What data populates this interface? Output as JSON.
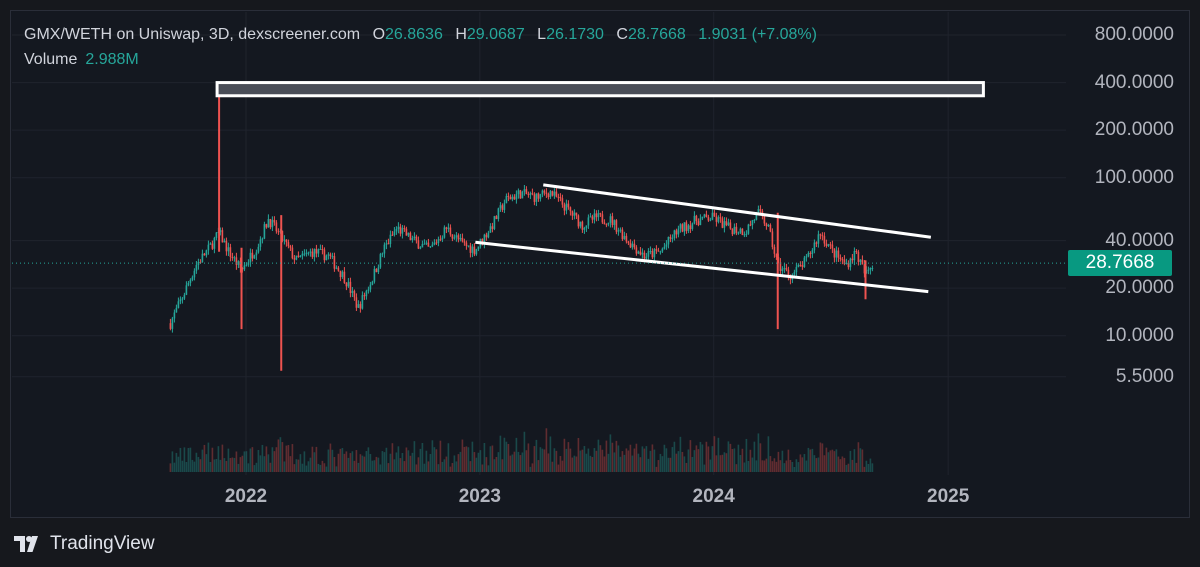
{
  "header": {
    "title": "GMX/WETH on Uniswap, 3D, dexscreener.com",
    "o_label": "O",
    "o_value": "26.8636",
    "h_label": "H",
    "h_value": "29.0687",
    "l_label": "L",
    "l_value": "26.1730",
    "c_label": "C",
    "c_value": "28.7668",
    "change": "1.9031 (+7.08%)"
  },
  "volume": {
    "label": "Volume",
    "value": "2.988M"
  },
  "price_tag": "28.7668",
  "brand": "TradingView",
  "colors": {
    "up": "#26a69a",
    "down": "#ef5350",
    "background": "#141820",
    "grid": "#1f232d",
    "trendline": "#ffffff",
    "tag": "#089981"
  },
  "chart_data": {
    "type": "candlestick",
    "scale": "log",
    "y_ticks": [
      "800.0000",
      "400.0000",
      "200.0000",
      "100.0000",
      "40.0000",
      "20.0000",
      "10.0000",
      "5.5000"
    ],
    "x_ticks": [
      "2022",
      "2023",
      "2024",
      "2025"
    ],
    "ylim": [
      5.5,
      800
    ],
    "last_price": 28.7668,
    "price_path": [
      [
        "2021-09-05",
        12
      ],
      [
        "2021-09-25",
        18
      ],
      [
        "2021-10-15",
        28
      ],
      [
        "2021-11-05",
        36
      ],
      [
        "2021-11-20",
        45
      ],
      [
        "2021-12-05",
        34
      ],
      [
        "2021-12-25",
        26
      ],
      [
        "2022-01-20",
        38
      ],
      [
        "2022-02-05",
        55
      ],
      [
        "2022-02-25",
        42
      ],
      [
        "2022-03-20",
        30
      ],
      [
        "2022-04-15",
        34
      ],
      [
        "2022-05-10",
        32
      ],
      [
        "2022-06-05",
        23
      ],
      [
        "2022-06-25",
        15
      ],
      [
        "2022-07-15",
        22
      ],
      [
        "2022-08-05",
        36
      ],
      [
        "2022-08-25",
        48
      ],
      [
        "2022-09-20",
        40
      ],
      [
        "2022-10-15",
        35
      ],
      [
        "2022-11-10",
        48
      ],
      [
        "2022-12-05",
        38
      ],
      [
        "2022-12-25",
        35
      ],
      [
        "2023-01-20",
        50
      ],
      [
        "2023-02-10",
        72
      ],
      [
        "2023-03-05",
        80
      ],
      [
        "2023-04-01",
        75
      ],
      [
        "2023-04-20",
        82
      ],
      [
        "2023-05-20",
        62
      ],
      [
        "2023-06-10",
        50
      ],
      [
        "2023-07-01",
        56
      ],
      [
        "2023-07-25",
        54
      ],
      [
        "2023-08-20",
        40
      ],
      [
        "2023-09-15",
        32
      ],
      [
        "2023-10-10",
        34
      ],
      [
        "2023-11-05",
        46
      ],
      [
        "2023-12-05",
        54
      ],
      [
        "2024-01-01",
        56
      ],
      [
        "2024-01-25",
        48
      ],
      [
        "2024-02-20",
        46
      ],
      [
        "2024-03-10",
        60
      ],
      [
        "2024-03-25",
        50
      ],
      [
        "2024-04-10",
        28
      ],
      [
        "2024-05-01",
        24
      ],
      [
        "2024-05-25",
        30
      ],
      [
        "2024-06-15",
        45
      ],
      [
        "2024-07-05",
        34
      ],
      [
        "2024-07-25",
        28
      ],
      [
        "2024-08-10",
        34
      ],
      [
        "2024-08-25",
        24
      ],
      [
        "2024-09-05",
        28.77
      ]
    ],
    "spikes": [
      {
        "date": "2021-11-20",
        "high": 380,
        "low": 34
      },
      {
        "date": "2021-12-25",
        "high": 36,
        "low": 11
      },
      {
        "date": "2022-02-25",
        "high": 58,
        "low": 6.0
      },
      {
        "date": "2024-04-10",
        "high": 60,
        "low": 11
      },
      {
        "date": "2024-08-25",
        "high": 30,
        "low": 17
      }
    ],
    "resistance_zone": {
      "start": "2021-11-20",
      "end": "2025-02-25",
      "low": 330,
      "high": 400
    },
    "channel_upper": [
      [
        "2023-04-10",
        90
      ],
      [
        "2024-12-05",
        42
      ]
    ],
    "channel_lower": [
      [
        "2022-12-25",
        39
      ],
      [
        "2024-12-01",
        19
      ]
    ]
  }
}
